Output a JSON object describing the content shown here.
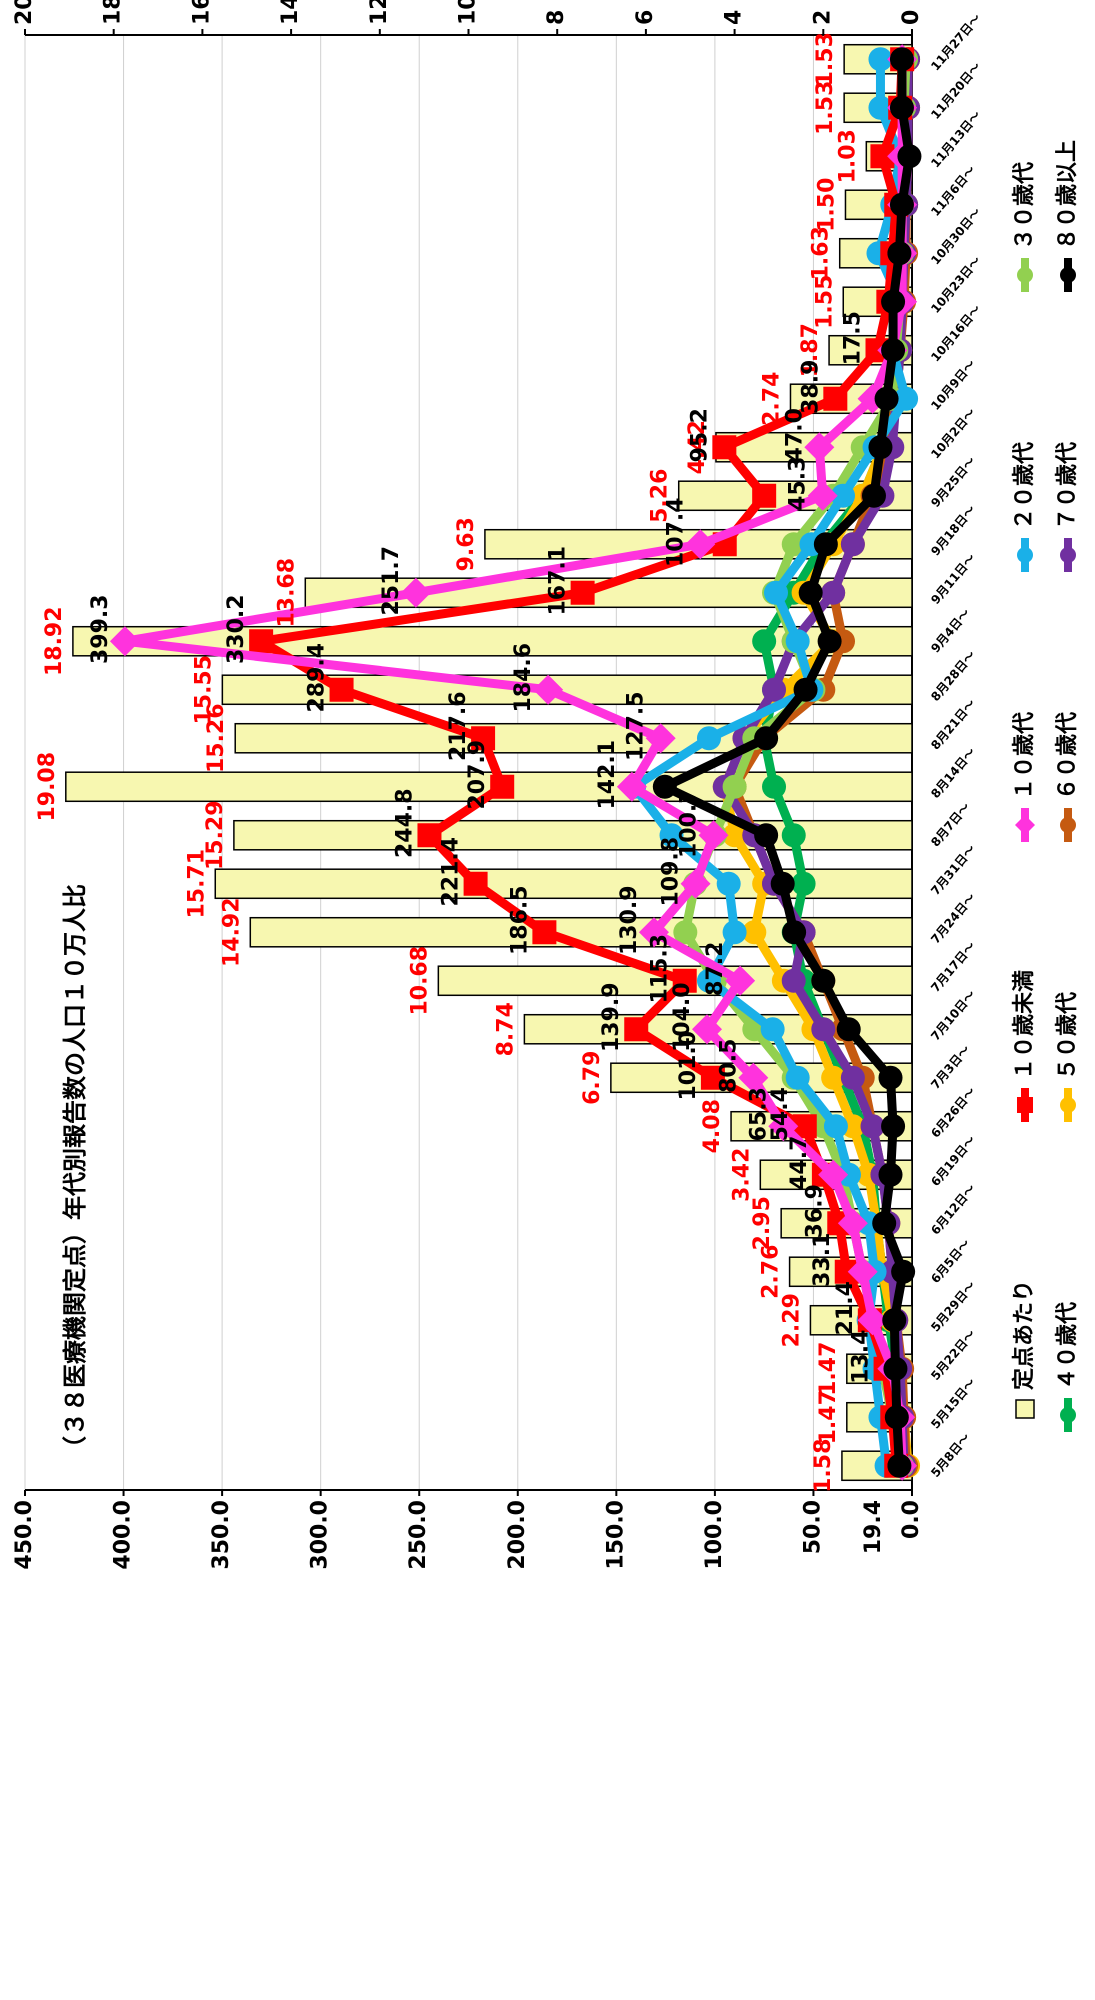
{
  "chart_data": {
    "type": "bar-line",
    "title": "（３８医療機関定点）年代別報告数の人口１０万人比",
    "categories": [
      "5月8日～",
      "5月15日～",
      "5月22日～",
      "5月29日～",
      "6月5日～",
      "6月12日～",
      "6月19日～",
      "6月26日～",
      "7月3日～",
      "7月10日～",
      "7月17日～",
      "7月24日～",
      "7月31日～",
      "8月7日～",
      "8月14日～",
      "8月21日～",
      "8月28日～",
      "9月4日～",
      "9月11日～",
      "9月18日～",
      "9月25日～",
      "10月2日～",
      "10月9日～",
      "10月16日～",
      "10月23日～",
      "10月30日～",
      "11月6日～",
      "11月13日～",
      "11月20日～",
      "11月27日～"
    ],
    "ylim": [
      0,
      450
    ],
    "yticks": [
      {
        "value": 0,
        "label": "0.0"
      },
      {
        "value": 50,
        "label": "50.0"
      },
      {
        "value": 100,
        "label": "100.0"
      },
      {
        "value": 150,
        "label": "150.0"
      },
      {
        "value": 200,
        "label": "200.0"
      },
      {
        "value": 250,
        "label": "250.0"
      },
      {
        "value": 300,
        "label": "300.0"
      },
      {
        "value": 350,
        "label": "350.0"
      },
      {
        "value": 400,
        "label": "400.0"
      },
      {
        "value": 450,
        "label": "450.0"
      }
    ],
    "y2lim": [
      0,
      20
    ],
    "y2ticks": [
      0,
      2,
      4,
      6,
      8,
      10,
      12,
      14,
      16,
      18,
      20
    ],
    "grid": true,
    "annotations": [
      {
        "text": "19.4",
        "y": 19.4
      }
    ],
    "series": [
      {
        "name": "定点あたり",
        "type": "bar",
        "axis": "y2",
        "color": "#f7f7b0",
        "label_color": "#ff0000",
        "values": [
          1.58,
          1.47,
          1.47,
          2.29,
          2.76,
          2.95,
          3.42,
          4.08,
          6.79,
          8.74,
          10.68,
          14.92,
          15.71,
          15.29,
          19.08,
          15.26,
          15.55,
          18.92,
          13.68,
          9.63,
          5.26,
          4.42,
          2.74,
          1.87,
          1.55,
          1.63,
          1.5,
          1.03,
          1.53,
          1.53
        ],
        "value_labels": [
          "1.58",
          "1.47",
          "1.47",
          "2.29",
          "2.76",
          "2.95",
          "3.42",
          "4.08",
          "6.79",
          "8.74",
          "10.68",
          "14.92",
          "15.71",
          "15.29",
          "19.08",
          "15.26",
          "15.55",
          "18.92",
          "13.68",
          "9.63",
          "5.26",
          "4.42",
          "2.74",
          "1.87",
          "1.55",
          "1.63",
          "1.50",
          "1.03",
          "1.53",
          "1.53"
        ]
      },
      {
        "name": "４０歳代",
        "type": "line",
        "marker": "circle",
        "color": "#00b050",
        "values": [
          3,
          5,
          8,
          12,
          15,
          18,
          20,
          25,
          35,
          45,
          55,
          60,
          55,
          60,
          70,
          75,
          70,
          75,
          60,
          45,
          25,
          15,
          8,
          6,
          5,
          4,
          3,
          3,
          2,
          2
        ]
      },
      {
        "name": "５０歳代",
        "type": "line",
        "marker": "circle",
        "color": "#ffc000",
        "values": [
          2,
          4,
          6,
          10,
          15,
          18,
          22,
          30,
          40,
          50,
          65,
          80,
          75,
          90,
          95,
          85,
          65,
          40,
          55,
          40,
          25,
          15,
          8,
          6,
          5,
          4,
          3,
          2,
          2,
          2
        ]
      },
      {
        "name": "６０歳代",
        "type": "line",
        "marker": "circle",
        "color": "#c55a11",
        "values": [
          3,
          4,
          5,
          8,
          10,
          12,
          15,
          20,
          25,
          35,
          45,
          55,
          70,
          80,
          90,
          75,
          45,
          35,
          40,
          30,
          20,
          12,
          8,
          6,
          4,
          3,
          3,
          2,
          2,
          2
        ]
      },
      {
        "name": "７０歳代",
        "type": "line",
        "marker": "circle",
        "color": "#7030a0",
        "values": [
          4,
          5,
          6,
          8,
          10,
          12,
          15,
          20,
          30,
          45,
          60,
          55,
          70,
          80,
          95,
          85,
          70,
          60,
          40,
          30,
          15,
          10,
          8,
          6,
          5,
          4,
          3,
          2,
          2,
          2
        ]
      },
      {
        "name": "３０歳代",
        "type": "line",
        "marker": "circle",
        "color": "#92d050",
        "values": [
          5,
          10,
          15,
          20,
          25,
          30,
          35,
          45,
          60,
          80,
          100,
          115,
          110,
          100,
          90,
          80,
          50,
          60,
          70,
          60,
          40,
          25,
          10,
          8,
          6,
          5,
          5,
          4,
          4,
          3
        ]
      },
      {
        "name": "２０歳代",
        "type": "line",
        "marker": "circle",
        "color": "#1ab0e8",
        "values": [
          12.9,
          16,
          19,
          22,
          19,
          22,
          32,
          38.6,
          58,
          70.7,
          103,
          90,
          93,
          122,
          141,
          103,
          51,
          58,
          69,
          51,
          35,
          19,
          3,
          10,
          6,
          17,
          10,
          6,
          16,
          16
        ]
      },
      {
        "name": "１０歳未満",
        "type": "line",
        "marker": "square",
        "color": "#ff0000",
        "label_color": "#000000",
        "values": [
          8,
          10,
          13.4,
          21.4,
          33.1,
          36.9,
          44.7,
          54.4,
          101.0,
          139.9,
          115.3,
          186.5,
          221.4,
          244.8,
          207.9,
          217.6,
          289.4,
          330.2,
          167.1,
          95,
          75,
          95.2,
          38.9,
          17.5,
          12,
          10,
          8,
          15,
          6,
          5
        ],
        "value_labels": [
          null,
          null,
          "13.4",
          "21.4",
          "33.1",
          "36.9",
          "44.7",
          "54.4",
          "101.0",
          "139.9",
          "115.3",
          "186.5",
          "221.4",
          "244.8",
          "207.9",
          "217.6",
          "289.4",
          "330.2",
          "167.1",
          null,
          null,
          "95.2",
          "38.9",
          "17.5",
          null,
          null,
          null,
          null,
          null,
          null
        ]
      },
      {
        "name": "１０歳代",
        "type": "line",
        "marker": "diamond",
        "color": "#ff33dd",
        "label_color": "#000000",
        "values": [
          5,
          6,
          10,
          20,
          25,
          30,
          40,
          65.3,
          80.5,
          104.0,
          87.2,
          130.9,
          109.8,
          100.7,
          142.1,
          127.5,
          184.6,
          399.3,
          251.7,
          107.4,
          45.3,
          47.0,
          20,
          10,
          5,
          5,
          5,
          5,
          5,
          5
        ],
        "value_labels": [
          null,
          null,
          null,
          null,
          null,
          null,
          null,
          "65.3",
          "80.5",
          "104.0",
          "87.2",
          "130.9",
          "109.8",
          "100.7",
          "142.1",
          "127.5",
          "184.6",
          "399.3",
          "251.7",
          "107.4",
          "45.3",
          "47.0",
          null,
          null,
          null,
          null,
          null,
          null,
          null,
          null
        ]
      },
      {
        "name": "８０歳以上",
        "type": "line",
        "marker": "circle",
        "color": "#000000",
        "values": [
          6.4,
          7.7,
          8.4,
          9.0,
          4.5,
          14.1,
          10.9,
          9.6,
          10.9,
          32.1,
          45,
          59.8,
          65.6,
          74,
          125.4,
          74,
          54,
          41.8,
          51.4,
          43.7,
          19.3,
          16,
          12.9,
          9.6,
          9.6,
          6.4,
          5.1,
          1.3,
          5.1,
          5.1
        ]
      }
    ]
  }
}
